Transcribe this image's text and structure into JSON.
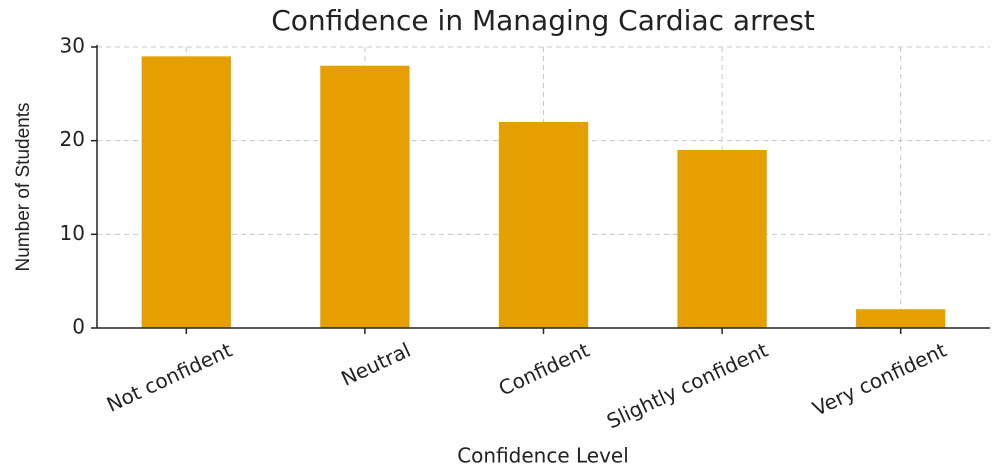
{
  "chart_data": {
    "type": "bar",
    "title": "Confidence in Managing Cardiac arrest",
    "x_label": "Confidence Level",
    "y_label": "Number of Students",
    "categories": [
      "Not confident",
      "Neutral",
      "Confident",
      "Slightly confident",
      "Very confident"
    ],
    "values": [
      29,
      28,
      22,
      19,
      2
    ],
    "color": "#e69f00",
    "ylim": [
      0,
      30
    ],
    "yticks": [
      0,
      10,
      20,
      30
    ],
    "grid": true
  }
}
